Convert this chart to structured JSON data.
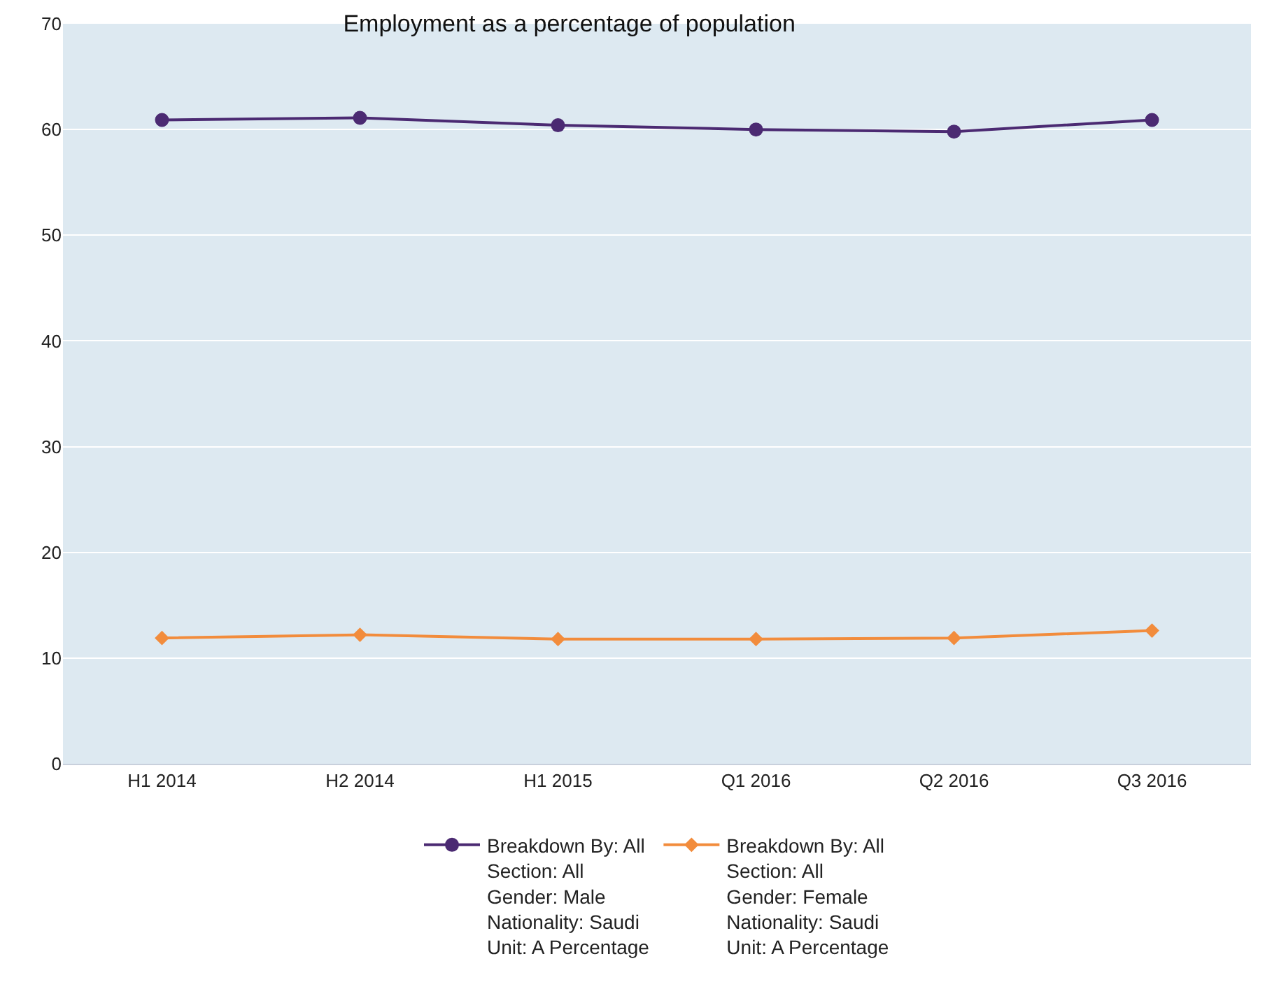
{
  "chart_data": {
    "type": "line",
    "title": "Employment as a percentage of population",
    "categories": [
      "H1 2014",
      "H2 2014",
      "H1 2015",
      "Q1 2016",
      "Q2 2016",
      "Q3 2016"
    ],
    "series": [
      {
        "name": "Breakdown By: All\nSection: All\nGender: Male\nNationality: Saudi\nUnit: A Percentage",
        "color": "#4b2a72",
        "marker": "circle",
        "values": [
          60.9,
          61.1,
          60.4,
          60.0,
          59.8,
          60.9
        ]
      },
      {
        "name": "Breakdown By: All\nSection: All\nGender: Female\nNationality: Saudi\nUnit: A Percentage",
        "color": "#f28c3c",
        "marker": "diamond",
        "values": [
          11.9,
          12.2,
          11.8,
          11.8,
          11.9,
          12.6
        ]
      }
    ],
    "ylim": [
      0,
      70
    ],
    "yticks": [
      0,
      10,
      20,
      30,
      40,
      50,
      60,
      70
    ],
    "grid": "y",
    "legend": "bottom"
  }
}
